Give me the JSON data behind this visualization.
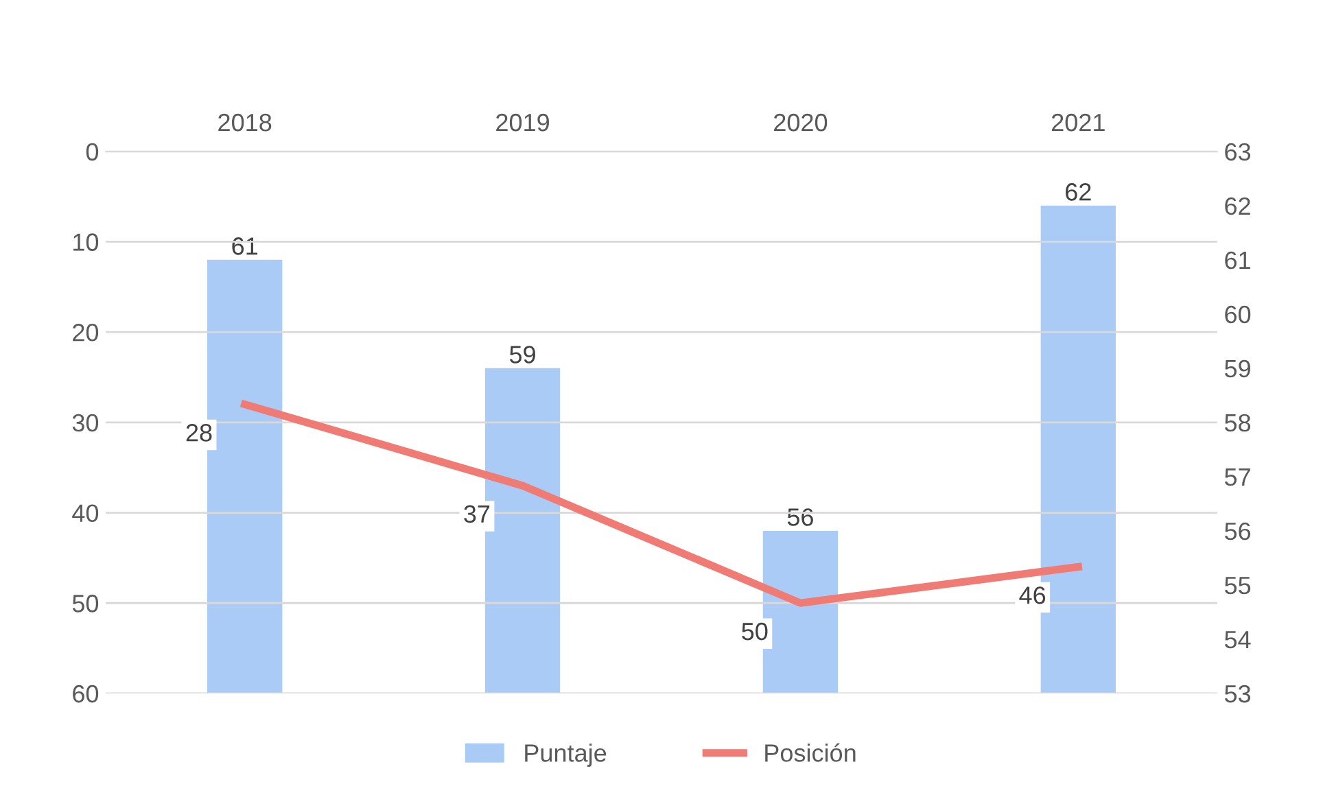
{
  "chart_data": {
    "type": "bar",
    "categories": [
      "2018",
      "2019",
      "2020",
      "2021"
    ],
    "series": [
      {
        "name": "Puntaje",
        "axis": "y2",
        "color": "#a9cbf5",
        "values": [
          61,
          59,
          56,
          62
        ]
      },
      {
        "name": "Posición",
        "type": "line",
        "color": "#f07a74",
        "values": [
          28,
          37,
          50,
          46
        ]
      }
    ],
    "ylim": [
      60,
      0
    ],
    "yticks": [
      0,
      10,
      20,
      30,
      40,
      50,
      60
    ],
    "y2lim": [
      53,
      63
    ],
    "y2ticks": [
      53,
      54,
      55,
      56,
      57,
      58,
      59,
      60,
      61,
      62,
      63
    ],
    "data_labels": true,
    "grid": "y",
    "legend": "bottom"
  }
}
